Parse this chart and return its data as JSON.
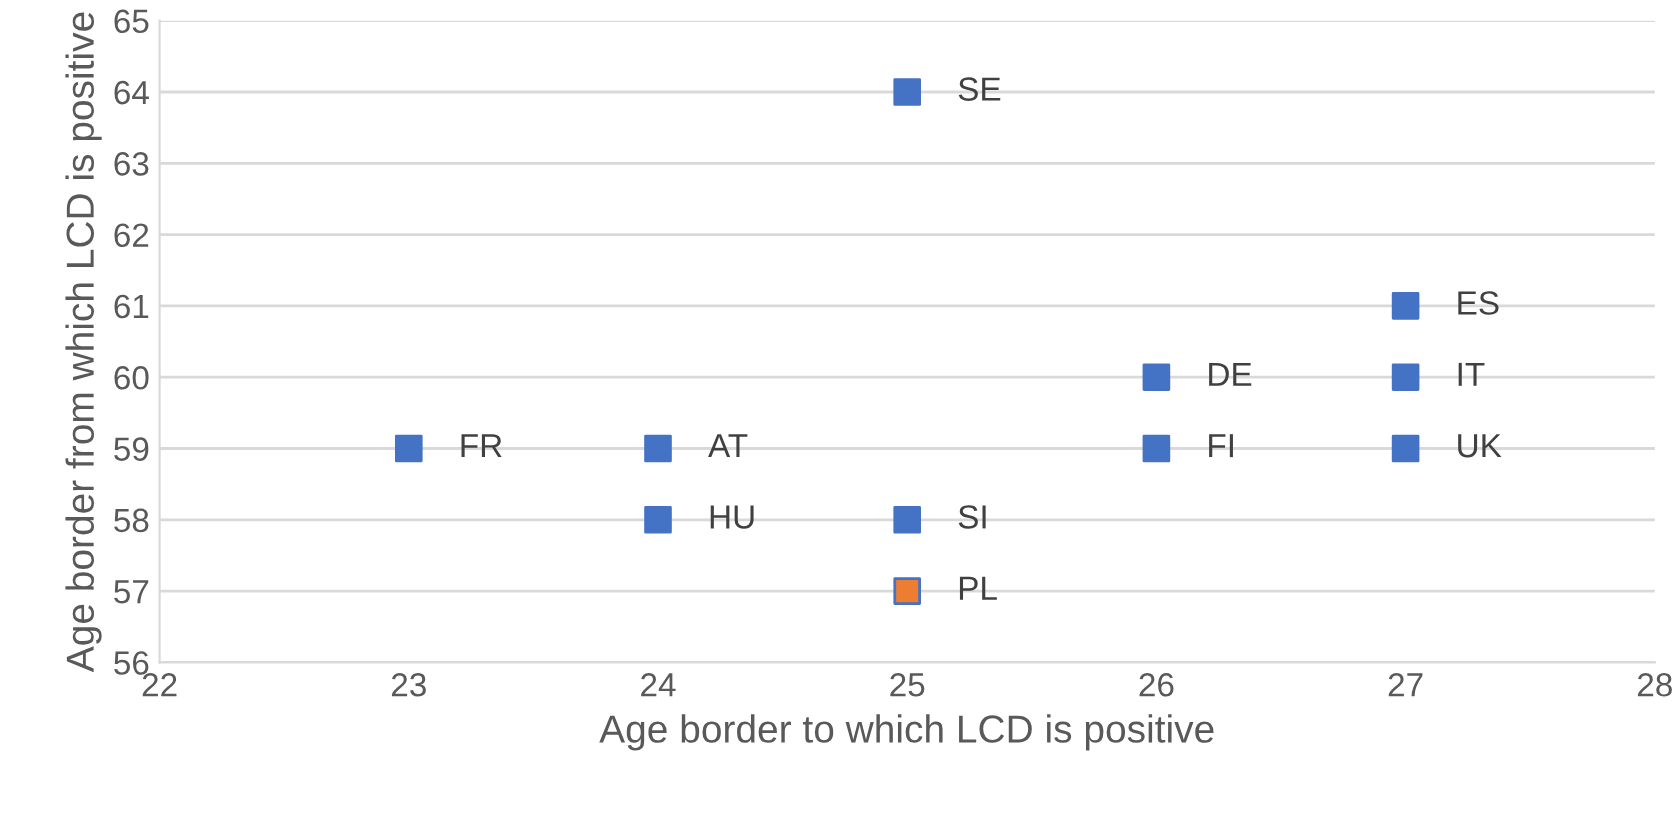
{
  "chart_data": {
    "type": "scatter",
    "xlabel": "Age border to which LCD is positive",
    "ylabel": "Age border from which LCD is positive",
    "x": [
      23,
      24,
      24,
      25,
      25,
      25,
      26,
      26,
      27,
      27,
      27
    ],
    "values": [
      59,
      59,
      58,
      64,
      58,
      57,
      60,
      59,
      61,
      60,
      59
    ],
    "colors": [
      "#4472c4",
      "#4472c4",
      "#4472c4",
      "#4472c4",
      "#4472c4",
      "#ed7d31",
      "#4472c4",
      "#4472c4",
      "#4472c4",
      "#4472c4",
      "#4472c4"
    ],
    "annotations": [
      {
        "text": "FR",
        "x": 23,
        "y": 59
      },
      {
        "text": "AT",
        "x": 24,
        "y": 59
      },
      {
        "text": "HU",
        "x": 24,
        "y": 58
      },
      {
        "text": "SE",
        "x": 25,
        "y": 64
      },
      {
        "text": "SI",
        "x": 25,
        "y": 58
      },
      {
        "text": "PL",
        "x": 25,
        "y": 57
      },
      {
        "text": "DE",
        "x": 26,
        "y": 60
      },
      {
        "text": "FI",
        "x": 26,
        "y": 59
      },
      {
        "text": "ES",
        "x": 27,
        "y": 61
      },
      {
        "text": "IT",
        "x": 27,
        "y": 60
      },
      {
        "text": "UK",
        "x": 27,
        "y": 59
      }
    ],
    "xlim": [
      22,
      28
    ],
    "xticks": [
      22,
      23,
      24,
      25,
      26,
      27,
      28
    ],
    "ylim": [
      56,
      65
    ],
    "yticks": [
      56,
      57,
      58,
      59,
      60,
      61,
      62,
      63,
      64,
      65
    ],
    "grid": "y",
    "marker": "square"
  }
}
